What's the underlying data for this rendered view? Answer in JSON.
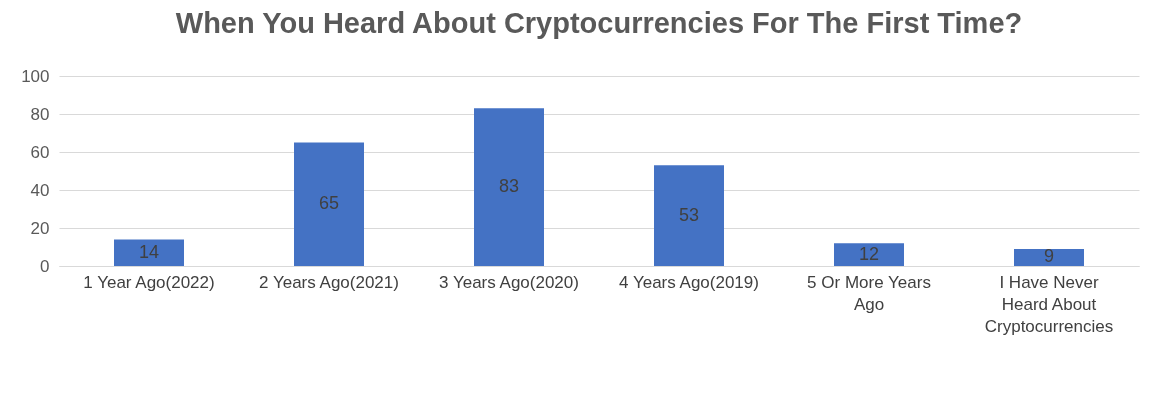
{
  "chart_data": {
    "type": "bar",
    "title": "When You Heard About Cryptocurrencies For The First Time?",
    "categories": [
      "1 Year Ago(2022)",
      "2 Years Ago(2021)",
      "3 Years Ago(2020)",
      "4 Years Ago(2019)",
      "5 Or More Years Ago",
      "I Have Never Heard About Cryptocurrencies"
    ],
    "values": [
      14,
      65,
      83,
      53,
      12,
      9
    ],
    "color": "#4472c4",
    "ylim": [
      0,
      100
    ],
    "yticks": [
      0,
      20,
      40,
      60,
      80,
      100
    ],
    "grid": "y",
    "data_labels": true
  }
}
